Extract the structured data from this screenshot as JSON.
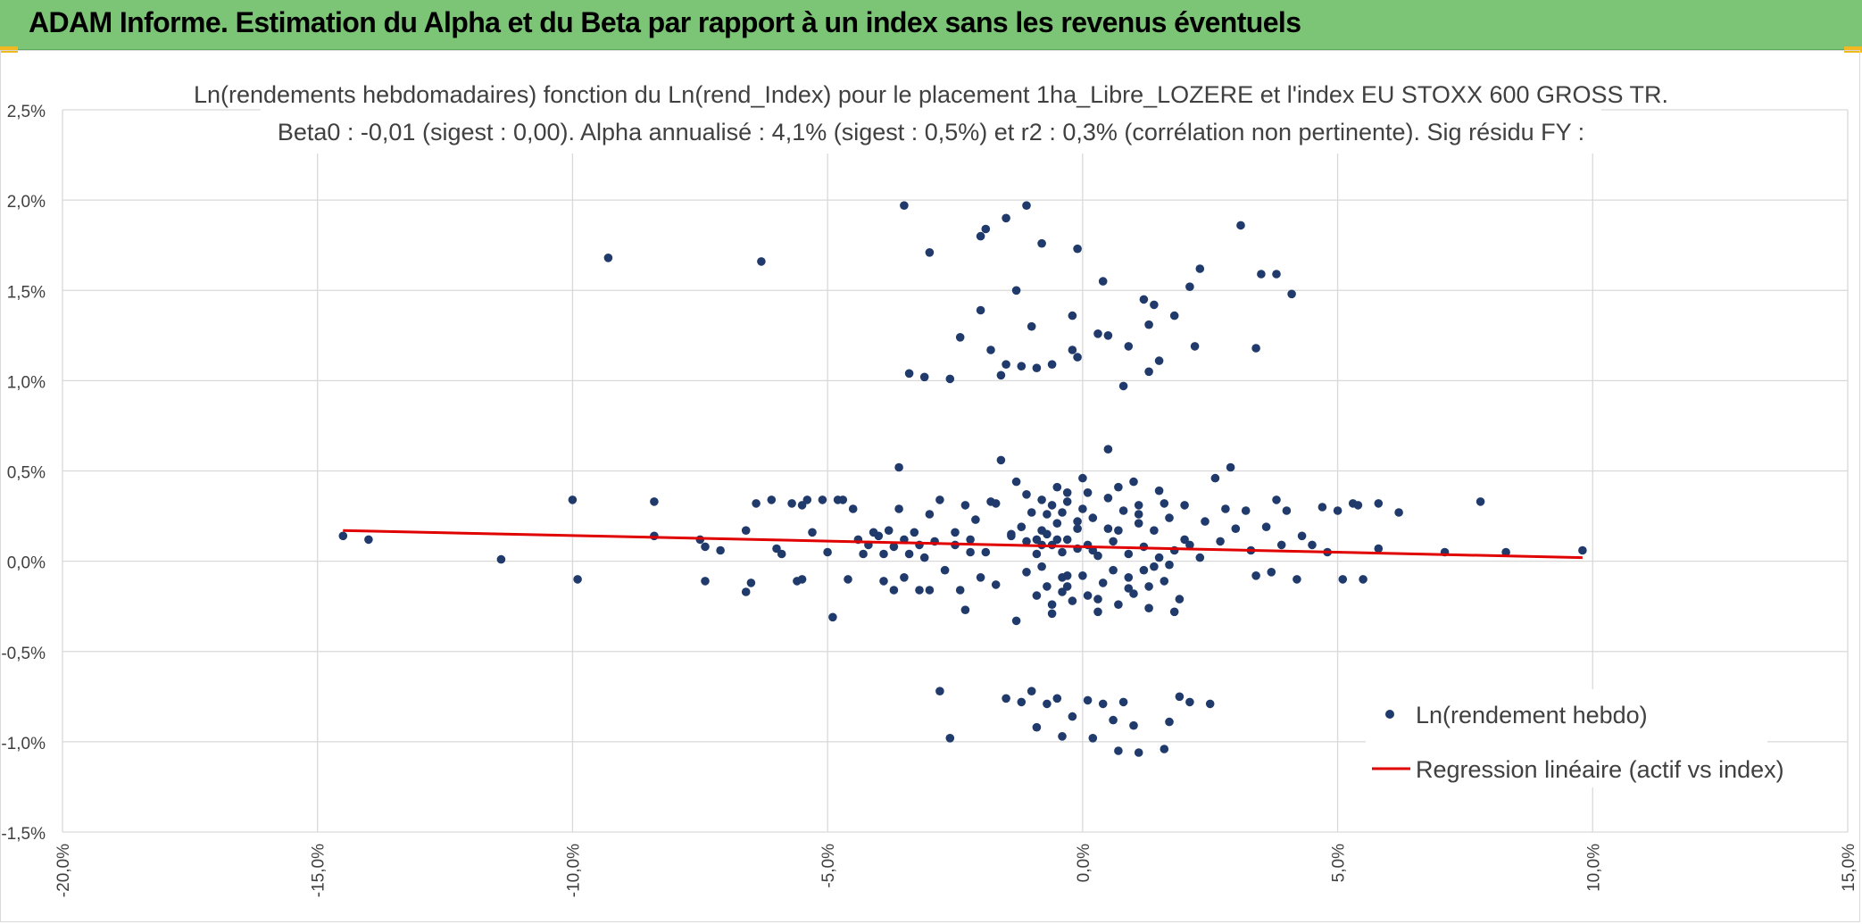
{
  "banner": {
    "title": "ADAM Informe. Estimation du Alpha et du Beta par rapport à un index sans les revenus éventuels",
    "color": "#7cc576",
    "corner_color": "#f2b81f"
  },
  "chart_data": {
    "type": "scatter",
    "title_line1": "Ln(rendements hebdomadaires) fonction du Ln(rend_Index) pour le placement 1ha_Libre_LOZERE et l'index EU STOXX 600 GROSS TR.",
    "title_line2": "Beta0 : -0,01 (sigest : 0,00). Alpha annualisé : 4,1% (sigest : 0,5%) et r2 : 0,3% (corrélation non pertinente). Sig résidu FY :",
    "xlim": [
      -0.2,
      0.15
    ],
    "ylim": [
      -0.015,
      0.025
    ],
    "x_ticks": [
      "-20,0%",
      "-15,0%",
      "-10,0%",
      "-5,0%",
      "0,0%",
      "5,0%",
      "10,0%",
      "15,0%"
    ],
    "y_ticks": [
      "2,5%",
      "2,0%",
      "1,5%",
      "1,0%",
      "0,5%",
      "0,0%",
      "-0,5%",
      "-1,0%",
      "-1,5%"
    ],
    "grid": true,
    "legend_position": "bottom-right",
    "series": [
      {
        "name": "Ln(rendement hebdo)",
        "kind": "scatter",
        "color": "#1f3a6b",
        "points": [
          [
            -0.145,
            0.0014
          ],
          [
            -0.14,
            0.0012
          ],
          [
            -0.114,
            0.0001
          ],
          [
            -0.1,
            0.0034
          ],
          [
            -0.099,
            -0.001
          ],
          [
            -0.093,
            0.0168
          ],
          [
            -0.084,
            0.0033
          ],
          [
            -0.084,
            0.0014
          ],
          [
            -0.075,
            0.0012
          ],
          [
            -0.074,
            0.0008
          ],
          [
            -0.074,
            -0.0011
          ],
          [
            -0.071,
            0.0006
          ],
          [
            -0.066,
            0.0017
          ],
          [
            -0.066,
            -0.0017
          ],
          [
            -0.065,
            -0.0012
          ],
          [
            -0.064,
            0.0032
          ],
          [
            -0.063,
            0.0166
          ],
          [
            -0.061,
            0.0034
          ],
          [
            -0.06,
            0.0007
          ],
          [
            -0.059,
            0.0004
          ],
          [
            -0.057,
            0.0032
          ],
          [
            -0.056,
            -0.0011
          ],
          [
            -0.055,
            0.0031
          ],
          [
            -0.055,
            -0.001
          ],
          [
            -0.054,
            0.0034
          ],
          [
            -0.053,
            0.0016
          ],
          [
            -0.051,
            0.0034
          ],
          [
            -0.05,
            0.0005
          ],
          [
            -0.049,
            -0.0031
          ],
          [
            -0.048,
            0.0034
          ],
          [
            -0.047,
            0.0034
          ],
          [
            -0.046,
            -0.001
          ],
          [
            -0.045,
            0.0029
          ],
          [
            -0.044,
            0.0012
          ],
          [
            -0.043,
            0.0004
          ],
          [
            -0.042,
            0.0009
          ],
          [
            -0.041,
            0.0016
          ],
          [
            -0.04,
            0.0014
          ],
          [
            -0.039,
            0.0004
          ],
          [
            -0.039,
            -0.0011
          ],
          [
            -0.038,
            0.0017
          ],
          [
            -0.037,
            0.0008
          ],
          [
            -0.037,
            -0.0016
          ],
          [
            -0.036,
            0.0052
          ],
          [
            -0.036,
            0.0029
          ],
          [
            -0.035,
            0.0012
          ],
          [
            -0.035,
            -0.0009
          ],
          [
            -0.035,
            0.0197
          ],
          [
            -0.034,
            0.0004
          ],
          [
            -0.034,
            0.0104
          ],
          [
            -0.033,
            0.0016
          ],
          [
            -0.032,
            -0.0016
          ],
          [
            -0.032,
            0.0009
          ],
          [
            -0.031,
            0.0102
          ],
          [
            -0.031,
            0.0002
          ],
          [
            -0.03,
            0.0171
          ],
          [
            -0.03,
            0.0026
          ],
          [
            -0.03,
            -0.0016
          ],
          [
            -0.029,
            0.0011
          ],
          [
            -0.028,
            0.0034
          ],
          [
            -0.028,
            -0.0072
          ],
          [
            -0.027,
            -0.0005
          ],
          [
            -0.026,
            0.0101
          ],
          [
            -0.026,
            -0.0098
          ],
          [
            -0.025,
            0.0016
          ],
          [
            -0.025,
            0.0009
          ],
          [
            -0.024,
            0.0124
          ],
          [
            -0.024,
            -0.0016
          ],
          [
            -0.023,
            0.0031
          ],
          [
            -0.023,
            -0.0027
          ],
          [
            -0.022,
            0.0005
          ],
          [
            -0.022,
            0.0012
          ],
          [
            -0.021,
            0.0023
          ],
          [
            -0.02,
            0.0139
          ],
          [
            -0.02,
            -0.0009
          ],
          [
            -0.02,
            0.018
          ],
          [
            -0.019,
            0.0184
          ],
          [
            -0.019,
            0.0005
          ],
          [
            -0.018,
            0.0033
          ],
          [
            -0.018,
            0.0117
          ],
          [
            -0.017,
            -0.0013
          ],
          [
            -0.017,
            0.0032
          ],
          [
            -0.016,
            0.0103
          ],
          [
            -0.016,
            0.0056
          ],
          [
            -0.015,
            0.019
          ],
          [
            -0.015,
            -0.0076
          ],
          [
            -0.015,
            0.0109
          ],
          [
            -0.014,
            0.0014
          ],
          [
            -0.014,
            0.0015
          ],
          [
            -0.013,
            0.015
          ],
          [
            -0.013,
            -0.0033
          ],
          [
            -0.013,
            0.0044
          ],
          [
            -0.012,
            0.0108
          ],
          [
            -0.012,
            -0.0078
          ],
          [
            -0.011,
            0.0011
          ],
          [
            -0.011,
            0.0197
          ],
          [
            -0.011,
            0.0037
          ],
          [
            -0.01,
            0.013
          ],
          [
            -0.01,
            -0.0072
          ],
          [
            -0.009,
            0.0107
          ],
          [
            -0.009,
            -0.0092
          ],
          [
            -0.009,
            0.0004
          ],
          [
            -0.008,
            0.0176
          ],
          [
            -0.008,
            0.0017
          ],
          [
            -0.007,
            -0.0079
          ],
          [
            -0.006,
            0.0109
          ],
          [
            -0.006,
            -0.0029
          ],
          [
            -0.006,
            0.0031
          ],
          [
            -0.005,
            -0.0076
          ],
          [
            -0.004,
            0.0005
          ],
          [
            -0.004,
            -0.0009
          ],
          [
            -0.004,
            -0.0097
          ],
          [
            -0.003,
            0.0012
          ],
          [
            -0.003,
            0.0038
          ],
          [
            -0.002,
            0.0136
          ],
          [
            -0.002,
            0.0117
          ],
          [
            -0.002,
            -0.0086
          ],
          [
            -0.001,
            0.0173
          ],
          [
            -0.001,
            0.0113
          ],
          [
            -0.001,
            0.0018
          ],
          [
            0.0,
            -0.0008
          ],
          [
            0.0,
            0.0046
          ],
          [
            0.001,
            -0.0077
          ],
          [
            0.001,
            0.0009
          ],
          [
            0.002,
            0.0006
          ],
          [
            0.002,
            -0.0098
          ],
          [
            0.003,
            0.0126
          ],
          [
            0.003,
            -0.0028
          ],
          [
            0.004,
            0.0155
          ],
          [
            0.004,
            -0.0079
          ],
          [
            0.005,
            0.0125
          ],
          [
            0.005,
            0.0062
          ],
          [
            0.006,
            -0.0005
          ],
          [
            0.006,
            -0.0088
          ],
          [
            0.007,
            0.0017
          ],
          [
            0.007,
            -0.0105
          ],
          [
            0.008,
            0.0097
          ],
          [
            0.008,
            -0.0078
          ],
          [
            0.009,
            0.0119
          ],
          [
            0.009,
            -0.0015
          ],
          [
            0.01,
            -0.0091
          ],
          [
            0.01,
            0.0044
          ],
          [
            0.011,
            -0.0106
          ],
          [
            0.011,
            0.0031
          ],
          [
            0.012,
            0.0145
          ],
          [
            0.012,
            -0.0005
          ],
          [
            0.013,
            0.0131
          ],
          [
            0.013,
            0.0105
          ],
          [
            0.014,
            0.0142
          ],
          [
            0.014,
            -0.0003
          ],
          [
            0.015,
            0.0111
          ],
          [
            0.016,
            -0.0104
          ],
          [
            0.016,
            0.0032
          ],
          [
            0.017,
            -0.0089
          ],
          [
            0.018,
            0.0136
          ],
          [
            0.018,
            -0.0028
          ],
          [
            0.019,
            -0.0075
          ],
          [
            0.02,
            0.0012
          ],
          [
            0.021,
            0.0152
          ],
          [
            0.021,
            -0.0078
          ],
          [
            0.022,
            0.0119
          ],
          [
            0.023,
            0.0162
          ],
          [
            0.023,
            0.0002
          ],
          [
            0.024,
            0.0022
          ],
          [
            0.025,
            -0.0079
          ],
          [
            0.026,
            0.0046
          ],
          [
            0.027,
            0.0011
          ],
          [
            0.028,
            0.0029
          ],
          [
            0.029,
            0.0052
          ],
          [
            0.03,
            0.0018
          ],
          [
            0.031,
            0.0186
          ],
          [
            0.032,
            0.0028
          ],
          [
            0.033,
            0.0006
          ],
          [
            0.034,
            0.0118
          ],
          [
            0.034,
            -0.0008
          ],
          [
            0.035,
            0.0159
          ],
          [
            0.036,
            0.0019
          ],
          [
            0.037,
            -0.0006
          ],
          [
            0.038,
            0.0159
          ],
          [
            0.038,
            0.0034
          ],
          [
            0.039,
            0.0009
          ],
          [
            0.04,
            0.0028
          ],
          [
            0.041,
            0.0148
          ],
          [
            0.042,
            -0.001
          ],
          [
            0.043,
            0.0014
          ],
          [
            0.045,
            0.0009
          ],
          [
            0.047,
            0.003
          ],
          [
            0.048,
            0.0005
          ],
          [
            0.05,
            0.0028
          ],
          [
            0.051,
            -0.001
          ],
          [
            0.053,
            0.0032
          ],
          [
            0.054,
            0.0031
          ],
          [
            0.055,
            -0.001
          ],
          [
            0.058,
            0.0032
          ],
          [
            0.058,
            0.0007
          ],
          [
            0.062,
            0.0027
          ],
          [
            0.071,
            0.0005
          ],
          [
            0.078,
            0.0033
          ],
          [
            0.083,
            0.0005
          ],
          [
            0.098,
            0.0006
          ],
          [
            -0.008,
            -0.0003
          ],
          [
            -0.007,
            0.0026
          ],
          [
            -0.006,
            0.0009
          ],
          [
            -0.005,
            0.0021
          ],
          [
            -0.004,
            -0.0017
          ],
          [
            -0.003,
            0.0033
          ],
          [
            -0.002,
            -0.0022
          ],
          [
            -0.001,
            0.0007
          ],
          [
            0.0,
            0.0029
          ],
          [
            0.001,
            -0.0019
          ],
          [
            0.002,
            0.0024
          ],
          [
            0.003,
            0.0003
          ],
          [
            0.004,
            -0.0012
          ],
          [
            0.005,
            0.0035
          ],
          [
            0.006,
            0.0011
          ],
          [
            0.007,
            -0.0024
          ],
          [
            0.008,
            0.0028
          ],
          [
            0.009,
            0.0004
          ],
          [
            0.01,
            -0.0018
          ],
          [
            0.011,
            0.0021
          ],
          [
            0.012,
            0.0008
          ],
          [
            0.013,
            -0.0026
          ],
          [
            0.014,
            0.0017
          ],
          [
            0.015,
            0.0002
          ],
          [
            0.016,
            -0.0011
          ],
          [
            0.017,
            0.0024
          ],
          [
            0.018,
            0.0006
          ],
          [
            0.019,
            -0.0021
          ],
          [
            0.02,
            0.0031
          ],
          [
            0.021,
            0.0009
          ],
          [
            -0.009,
            0.0012
          ],
          [
            -0.008,
            0.0034
          ],
          [
            -0.007,
            -0.0014
          ],
          [
            -0.005,
            0.0041
          ],
          [
            -0.003,
            -0.0008
          ],
          [
            -0.001,
            0.0022
          ],
          [
            0.001,
            0.0038
          ],
          [
            0.003,
            -0.0021
          ],
          [
            0.005,
            0.0018
          ],
          [
            0.007,
            0.0041
          ],
          [
            0.009,
            -0.0009
          ],
          [
            0.011,
            0.0026
          ],
          [
            0.013,
            -0.0014
          ],
          [
            0.015,
            0.0039
          ],
          [
            0.017,
            -0.0002
          ],
          [
            -0.012,
            0.0019
          ],
          [
            -0.011,
            -0.0006
          ],
          [
            -0.01,
            0.0027
          ],
          [
            -0.009,
            -0.0019
          ],
          [
            -0.008,
            0.0009
          ],
          [
            -0.007,
            0.0015
          ],
          [
            -0.006,
            -0.0024
          ],
          [
            -0.005,
            0.0012
          ],
          [
            -0.004,
            0.0027
          ],
          [
            -0.003,
            -0.0014
          ]
        ]
      },
      {
        "name": "Regression linéaire (actif vs index)",
        "kind": "line",
        "color": "#e00000",
        "points": [
          [
            -0.145,
            0.0017
          ],
          [
            0.098,
            0.0002
          ]
        ]
      }
    ]
  }
}
